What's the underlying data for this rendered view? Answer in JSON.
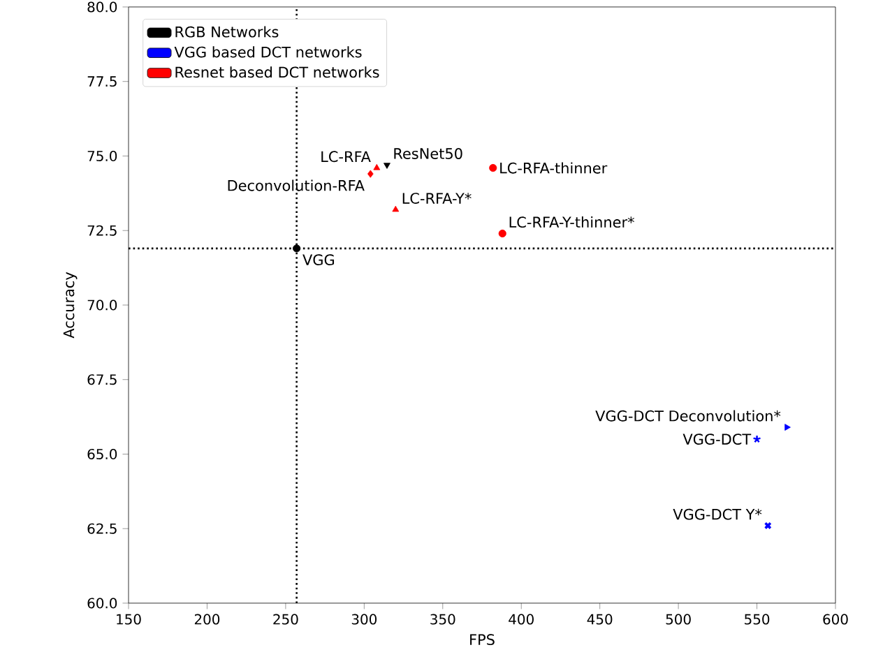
{
  "chart_data": {
    "type": "scatter",
    "xlabel": "FPS",
    "ylabel": "Accuracy",
    "xlim": [
      150,
      600
    ],
    "xticks": [
      150,
      200,
      250,
      300,
      350,
      400,
      450,
      500,
      550,
      600
    ],
    "ylim": [
      60,
      80
    ],
    "yticks": [
      {
        "value": 60,
        "label": "60.0"
      },
      {
        "value": 62.5,
        "label": "62.5"
      },
      {
        "value": 65,
        "label": "65.0"
      },
      {
        "value": 67.5,
        "label": "67.5"
      },
      {
        "value": 70,
        "label": "70.0"
      },
      {
        "value": 72.5,
        "label": "72.5"
      },
      {
        "value": 75,
        "label": "75.0"
      },
      {
        "value": 77.5,
        "label": "77.5"
      },
      {
        "value": 80,
        "label": "80.0"
      }
    ],
    "legend": "top left",
    "series": [
      {
        "name": "RGB Networks",
        "color": "#000000",
        "x": [
          257,
          314.5
        ],
        "values": [
          71.9,
          74.7
        ],
        "marker": [
          "circle",
          "triangle_down"
        ]
      },
      {
        "name": "VGG based DCT networks",
        "color": "#0000ff",
        "x": [
          569,
          550,
          557
        ],
        "values": [
          65.9,
          65.5,
          62.6
        ],
        "marker": [
          "triangle_right",
          "star",
          "cross"
        ]
      },
      {
        "name": "Resnet based DCT networks",
        "color": "#ff0000",
        "x": [
          304,
          308,
          382,
          320,
          388
        ],
        "values": [
          74.4,
          74.6,
          74.6,
          73.2,
          72.4
        ],
        "marker": [
          "diamond",
          "triangle",
          "circle",
          "triangle",
          "circle"
        ]
      }
    ],
    "ref_lines": [
      {
        "axis": "x",
        "value": 257,
        "color": "#000000",
        "line_style": "dotted"
      },
      {
        "axis": "y",
        "value": 71.9,
        "color": "#000000",
        "line_style": "dotted"
      }
    ],
    "annotations": [
      {
        "text": "VGG",
        "x": 257,
        "y": 71.9
      },
      {
        "text": "ResNet50",
        "x": 314.5,
        "y": 74.7
      },
      {
        "text": "VGG-DCT Deconvolution*",
        "x": 569,
        "y": 65.9
      },
      {
        "text": "VGG-DCT",
        "x": 550,
        "y": 65.5
      },
      {
        "text": "VGG-DCT Y*",
        "x": 557,
        "y": 62.6
      },
      {
        "text": "Deconvolution-RFA",
        "x": 304,
        "y": 74.4
      },
      {
        "text": "LC-RFA",
        "x": 308,
        "y": 74.6
      },
      {
        "text": "LC-RFA-thinner",
        "x": 382,
        "y": 74.6
      },
      {
        "text": "LC-RFA-Y*",
        "x": 320,
        "y": 73.2
      },
      {
        "text": "LC-RFA-Y-thinner*",
        "x": 388,
        "y": 72.4
      }
    ]
  }
}
